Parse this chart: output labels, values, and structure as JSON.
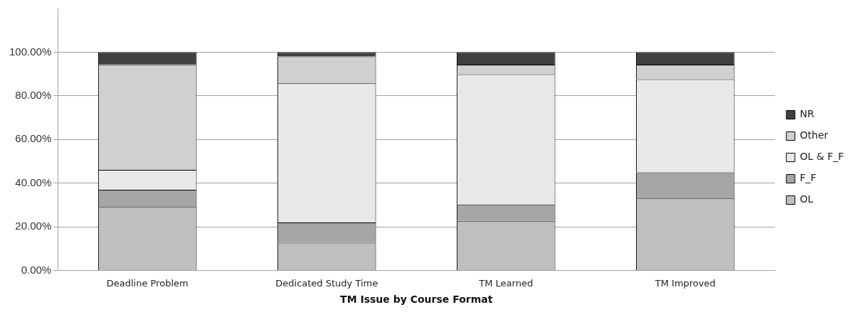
{
  "chart_data": {
    "type": "bar",
    "stacked": true,
    "xlabel": "TM Issue by Course Format",
    "categories": [
      "Deadline Problem",
      "Dedicated Study Time",
      "TM Learned",
      "TM Improved"
    ],
    "series": [
      {
        "name": "OL",
        "color": "#bfbfbf",
        "values": [
          29.1,
          12.7,
          22.7,
          33.0
        ]
      },
      {
        "name": "F_F",
        "color": "#a6a6a6",
        "values": [
          7.9,
          9.3,
          7.5,
          12.0
        ]
      },
      {
        "name": "OL & F_F",
        "color": "#e8e8e8",
        "values": [
          9.1,
          63.7,
          59.7,
          42.6
        ]
      },
      {
        "name": "Other",
        "color": "#d0d0d0",
        "values": [
          48.3,
          12.3,
          4.4,
          6.7
        ]
      },
      {
        "name": "NR",
        "color": "#404040",
        "values": [
          5.6,
          2.0,
          5.7,
          5.7
        ]
      }
    ],
    "ylim": [
      0,
      120
    ],
    "yticks": [
      {
        "value": 0,
        "label": "0.00%"
      },
      {
        "value": 20,
        "label": "20.00%"
      },
      {
        "value": 40,
        "label": "40.00%"
      },
      {
        "value": 60,
        "label": "60.00%"
      },
      {
        "value": 80,
        "label": "80.00%"
      },
      {
        "value": 100,
        "label": "100.00%"
      }
    ],
    "grid": "y",
    "legend": "right"
  }
}
